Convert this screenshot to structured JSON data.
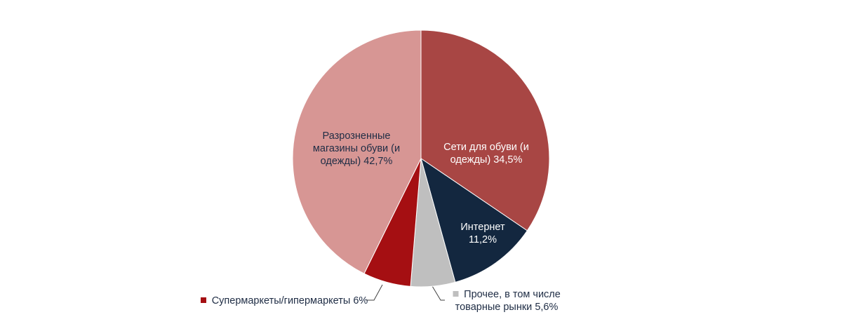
{
  "chart_data": {
    "type": "pie",
    "categories": [
      "Сети для обуви (и одежды)",
      "Интернет",
      "Прочее, в том числе товарные рынки",
      "Супермаркеты/гипермаркеты",
      "Разрозненные магазины обуви (и одежды)"
    ],
    "values": [
      34.5,
      11.2,
      5.6,
      6,
      42.7
    ],
    "value_labels": [
      "34,5%",
      "11,2%",
      "5,6%",
      "6%",
      "42,7%"
    ],
    "colors": [
      "#a84644",
      "#13273f",
      "#bfbfbf",
      "#a50f12",
      "#d79694"
    ]
  }
}
